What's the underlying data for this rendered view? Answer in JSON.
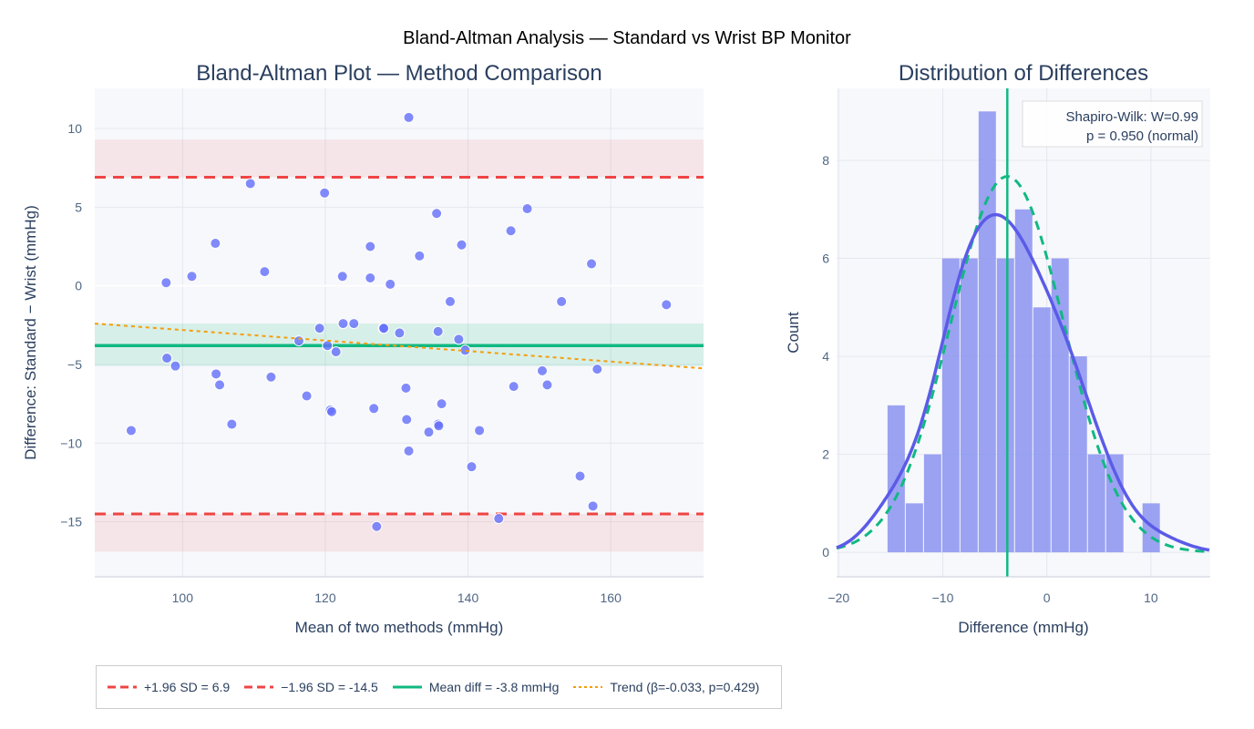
{
  "title": "Bland-Altman Analysis — Standard vs Wrist BP Monitor",
  "colors": {
    "points": "#636efa",
    "mean": "#10b981",
    "loa": "#ef4444",
    "trend": "#f59e0b",
    "kde": "#5b5be8",
    "hist": "#8b93f0"
  },
  "legend": [
    {
      "label": "+1.96 SD = 6.9",
      "style": "loa"
    },
    {
      "label": "−1.96 SD = -14.5",
      "style": "loa"
    },
    {
      "label": "Mean diff = -3.8 mmHg",
      "style": "mean"
    },
    {
      "label": "Trend (β=-0.033, p=0.429)",
      "style": "trend"
    }
  ],
  "annotation": {
    "line1": "Shapiro-Wilk: W=0.99",
    "line2": "p = 0.950 (normal)"
  },
  "chart_data": [
    {
      "type": "scatter",
      "title": "Bland-Altman Plot — Method Comparison",
      "xlabel": "Mean of two methods (mmHg)",
      "ylabel": "Difference: Standard − Wrist (mmHg)",
      "xlim": [
        87.7,
        173
      ],
      "ylim": [
        -18.5,
        12.55
      ],
      "xticks": [
        100,
        120,
        140,
        160
      ],
      "yticks": [
        10,
        5,
        0,
        -5,
        -10,
        -15
      ],
      "mean_diff": -3.8,
      "upper_loa": 6.9,
      "lower_loa": -14.5,
      "mean_ci": [
        -5.1,
        -2.4
      ],
      "upper_ci": [
        6.9,
        9.3
      ],
      "lower_ci": [
        -16.9,
        -14.5
      ],
      "trend": {
        "slope": -0.033,
        "y_at_xmin": -2.4,
        "y_at_xmax": -5.25
      },
      "points": [
        [
          92.8,
          -9.2
        ],
        [
          97.7,
          0.2
        ],
        [
          97.8,
          -4.6
        ],
        [
          99.0,
          -5.1
        ],
        [
          101.3,
          0.6
        ],
        [
          104.6,
          2.7
        ],
        [
          104.7,
          -5.6
        ],
        [
          105.2,
          -6.3
        ],
        [
          106.9,
          -8.8
        ],
        [
          109.5,
          6.5
        ],
        [
          111.5,
          0.9
        ],
        [
          112.4,
          -5.8
        ],
        [
          116.3,
          -3.5
        ],
        [
          117.4,
          -7.0
        ],
        [
          119.2,
          -2.7
        ],
        [
          119.9,
          5.9
        ],
        [
          120.3,
          -3.8
        ],
        [
          120.7,
          -7.9
        ],
        [
          120.9,
          -8.0
        ],
        [
          121.5,
          -4.2
        ],
        [
          122.4,
          0.6
        ],
        [
          122.5,
          -2.4
        ],
        [
          124.0,
          -2.4
        ],
        [
          126.3,
          2.5
        ],
        [
          126.3,
          0.5
        ],
        [
          126.8,
          -7.8
        ],
        [
          127.2,
          -15.3
        ],
        [
          128.1,
          -2.7
        ],
        [
          128.2,
          -2.7
        ],
        [
          129.1,
          0.1
        ],
        [
          130.4,
          -3.0
        ],
        [
          131.3,
          -6.5
        ],
        [
          131.4,
          -8.5
        ],
        [
          131.7,
          10.7
        ],
        [
          131.7,
          -10.5
        ],
        [
          133.2,
          1.9
        ],
        [
          134.5,
          -9.3
        ],
        [
          135.6,
          4.6
        ],
        [
          135.8,
          -2.9
        ],
        [
          135.8,
          -8.8
        ],
        [
          135.9,
          -8.9
        ],
        [
          136.3,
          -7.5
        ],
        [
          137.5,
          -1.0
        ],
        [
          139.1,
          2.6
        ],
        [
          138.7,
          -3.4
        ],
        [
          139.6,
          -4.1
        ],
        [
          140.5,
          -11.5
        ],
        [
          141.6,
          -9.2
        ],
        [
          144.3,
          -14.8
        ],
        [
          146.0,
          3.5
        ],
        [
          146.4,
          -6.4
        ],
        [
          148.3,
          4.9
        ],
        [
          150.4,
          -5.4
        ],
        [
          151.1,
          -6.3
        ],
        [
          153.1,
          -1.0
        ],
        [
          155.7,
          -12.1
        ],
        [
          157.5,
          -14.0
        ],
        [
          157.3,
          1.4
        ],
        [
          158.1,
          -5.3
        ],
        [
          167.8,
          -1.2
        ]
      ]
    },
    {
      "type": "bar",
      "title": "Distribution of Differences",
      "xlabel": "Difference (mmHg)",
      "ylabel": "Count",
      "xlim": [
        -20.2,
        15.7
      ],
      "ylim": [
        -0.5,
        9.47
      ],
      "xticks": [
        -20,
        -10,
        0,
        10
      ],
      "yticks": [
        0,
        2,
        4,
        6,
        8
      ],
      "xtick_labels": [
        "−20",
        "−10",
        "0",
        "10"
      ],
      "bin_start": -15.35,
      "bin_width": 1.75,
      "counts": [
        3,
        1,
        2,
        6,
        6,
        9,
        6,
        7,
        5,
        6,
        4,
        2,
        2,
        0,
        1
      ],
      "mean_line": -3.8,
      "normal": {
        "mean": -3.8,
        "sd": 5.46
      },
      "kde_bandwidth": 2.6
    }
  ]
}
